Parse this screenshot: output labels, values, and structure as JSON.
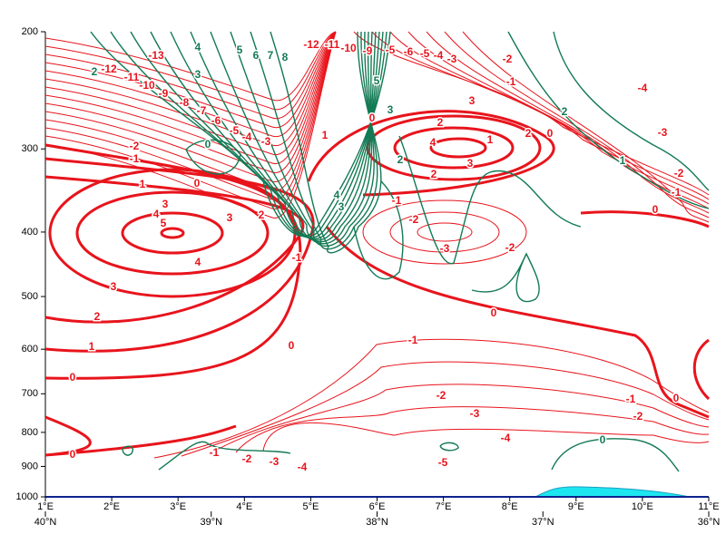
{
  "chart_data": {
    "type": "contour",
    "xlim": [
      1,
      11
    ],
    "xticks": [
      {
        "value": 1,
        "label": "1°E"
      },
      {
        "value": 2,
        "label": "2°E"
      },
      {
        "value": 3,
        "label": "3°E"
      },
      {
        "value": 4,
        "label": "4°E"
      },
      {
        "value": 5,
        "label": "5°E"
      },
      {
        "value": 6,
        "label": "6°E"
      },
      {
        "value": 7,
        "label": "7°E"
      },
      {
        "value": 8,
        "label": "8°E"
      },
      {
        "value": 9,
        "label": "9°E"
      },
      {
        "value": 10,
        "label": "10°E"
      },
      {
        "value": 11,
        "label": "11°E"
      }
    ],
    "lat_lim": [
      40,
      36
    ],
    "lat_ticks": [
      {
        "value": 40,
        "label": "40°N"
      },
      {
        "value": 39,
        "label": "39°N"
      },
      {
        "value": 38,
        "label": "38°N"
      },
      {
        "value": 37,
        "label": "37°N"
      },
      {
        "value": 36,
        "label": "36°N"
      }
    ],
    "ylim": [
      1000,
      200
    ],
    "yscale": "log",
    "yticks": [
      200,
      300,
      400,
      500,
      600,
      700,
      800,
      900,
      1000
    ],
    "red_color": "#e8141c",
    "green_color": "#137a55",
    "red_labels": [
      -13,
      -12,
      -11,
      -10,
      -9,
      -8,
      -7,
      -6,
      -5,
      -4,
      -3,
      -2,
      -1,
      1,
      0,
      3,
      4,
      5,
      3,
      2,
      4,
      3,
      2,
      1,
      0,
      0,
      -1,
      -12,
      -11,
      -10,
      -9,
      -5,
      -6,
      -5,
      -4,
      -3,
      -2,
      -1,
      0,
      1,
      2,
      3,
      4,
      3,
      2,
      2,
      0,
      1,
      -3,
      -2,
      -1,
      0,
      -4,
      -1,
      -2,
      -3,
      -2,
      0,
      -1,
      -2,
      -3,
      -4,
      -5,
      -4,
      -3,
      -2,
      -1,
      0,
      -1,
      -2,
      0
    ],
    "green_labels": [
      2,
      4,
      3,
      5,
      6,
      7,
      8,
      0,
      4,
      3,
      2,
      1,
      0,
      5,
      3,
      2
    ]
  }
}
